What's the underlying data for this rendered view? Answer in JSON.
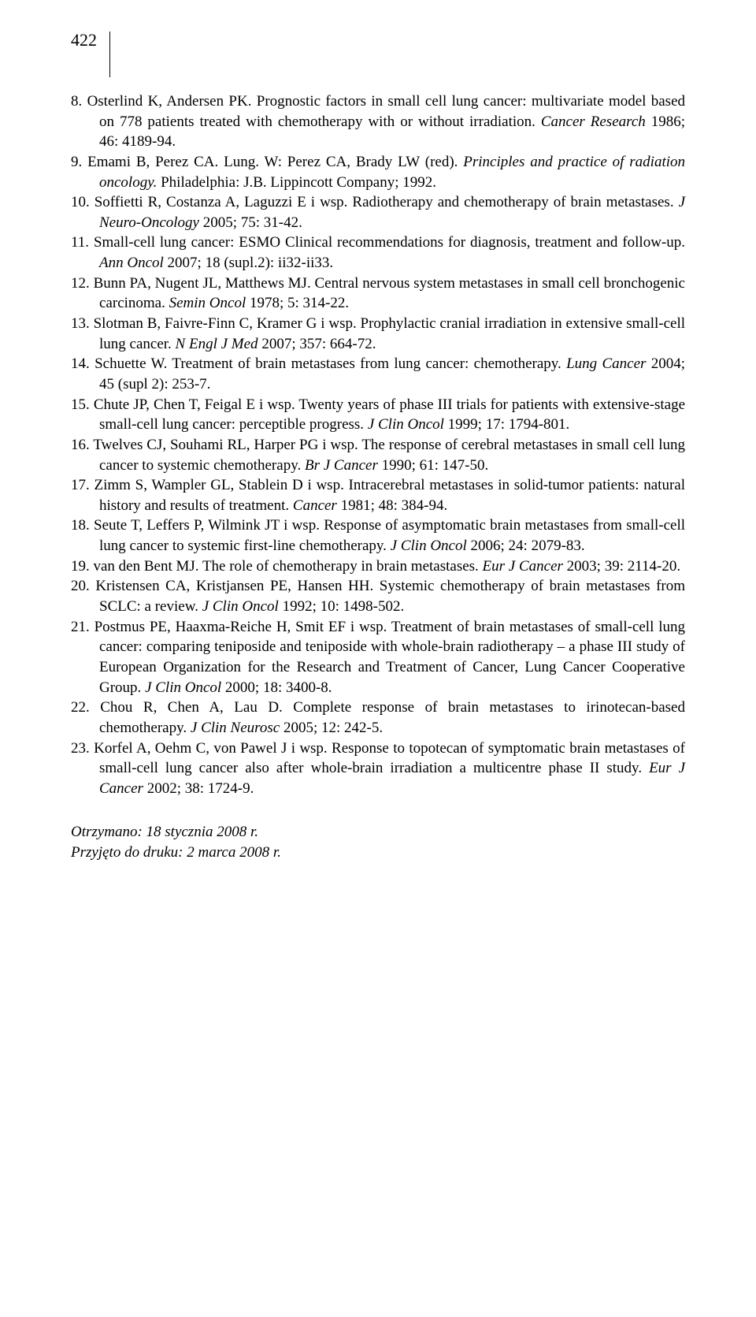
{
  "page_number": "422",
  "references": [
    {
      "num": "8.",
      "text": "Osterlind K, Andersen PK. Prognostic factors in small cell lung cancer: multivariate model based on 778 patients treated with chemotherapy with or without irradiation. ",
      "journal": "Cancer Research",
      "tail": " 1986; 46: 4189-94."
    },
    {
      "num": "9.",
      "text": "Emami B, Perez CA. Lung. W: Perez CA, Brady LW (red). ",
      "journal": "Principles and practice of radiation oncology.",
      "tail": " Philadelphia: J.B. Lippincott Company; 1992."
    },
    {
      "num": "10.",
      "text": "Soffietti R, Costanza A, Laguzzi E i wsp. Radiotherapy and chemotherapy of brain metastases. ",
      "journal": "J Neuro-Oncology",
      "tail": " 2005; 75: 31-42."
    },
    {
      "num": "11.",
      "text": "Small-cell lung cancer: ESMO Clinical recommendations for diagnosis, treatment and follow-up. ",
      "journal": "Ann Oncol",
      "tail": " 2007; 18 (supl.2): ii32-ii33."
    },
    {
      "num": "12.",
      "text": "Bunn PA, Nugent JL, Matthews MJ. Central nervous system metastases in small cell bronchogenic carcinoma. ",
      "journal": "Semin Oncol",
      "tail": " 1978; 5: 314-22."
    },
    {
      "num": "13.",
      "text": "Slotman B, Faivre-Finn C, Kramer G i wsp. Prophylactic cranial irradiation in extensive small-cell lung cancer. ",
      "journal": "N Engl J Med",
      "tail": " 2007; 357: 664-72."
    },
    {
      "num": "14.",
      "text": "Schuette W. Treatment of brain metastases from lung cancer: chemotherapy. ",
      "journal": "Lung Cancer",
      "tail": " 2004; 45 (supl 2): 253-7."
    },
    {
      "num": "15.",
      "text": "Chute JP, Chen T, Feigal E i wsp. Twenty years of phase III trials for patients with extensive-stage small-cell lung cancer: perceptible progress. ",
      "journal": "J Clin Oncol",
      "tail": " 1999; 17: 1794-801."
    },
    {
      "num": "16.",
      "text": "Twelves CJ, Souhami RL, Harper PG i wsp. The response of cerebral metastases in small cell lung cancer to systemic chemotherapy. ",
      "journal": "Br J Cancer",
      "tail": " 1990; 61: 147-50."
    },
    {
      "num": "17.",
      "text": "Zimm S, Wampler GL, Stablein D i wsp. Intracerebral metastases in solid-tumor patients: natural history and results of treatment. ",
      "journal": "Cancer",
      "tail": " 1981; 48: 384-94."
    },
    {
      "num": "18.",
      "text": "Seute T, Leffers P, Wilmink JT i wsp. Response of asymptomatic brain metastases from small-cell lung cancer to systemic first-line chemotherapy. ",
      "journal": "J Clin Oncol",
      "tail": " 2006; 24: 2079-83."
    },
    {
      "num": "19.",
      "text": "van den Bent MJ. The role of chemotherapy in brain metastases. ",
      "journal": "Eur J Cancer",
      "tail": " 2003; 39: 2114-20."
    },
    {
      "num": "20.",
      "text": "Kristensen CA, Kristjansen PE, Hansen HH. Systemic chemotherapy of brain metastases from SCLC: a review. ",
      "journal": "J Clin Oncol",
      "tail": " 1992; 10: 1498-502."
    },
    {
      "num": "21.",
      "text": "Postmus PE, Haaxma-Reiche H, Smit EF i wsp. Treatment of brain metastases of small-cell lung cancer: comparing teniposide and teniposide with whole-brain radiotherapy – a phase III study of European Organization for the Research and Treatment of Cancer, Lung Cancer Cooperative Group. ",
      "journal": "J Clin Oncol",
      "tail": " 2000; 18: 3400-8."
    },
    {
      "num": "22.",
      "text": "Chou R, Chen A, Lau D. Complete response of brain metastases to irinotecan-based chemotherapy. ",
      "journal": "J Clin Neurosc",
      "tail": " 2005; 12: 242-5."
    },
    {
      "num": "23.",
      "text": "Korfel A, Oehm C, von Pawel J i wsp. Response to topotecan of symptomatic brain metastases of small-cell lung cancer also after whole-brain irradiation a multicentre phase II study. ",
      "journal": "Eur J Cancer",
      "tail": " 2002; 38: 1724-9."
    }
  ],
  "footer": {
    "received": "Otrzymano: 18 stycznia 2008 r.",
    "accepted": "Przyjęto do druku: 2 marca 2008 r."
  }
}
